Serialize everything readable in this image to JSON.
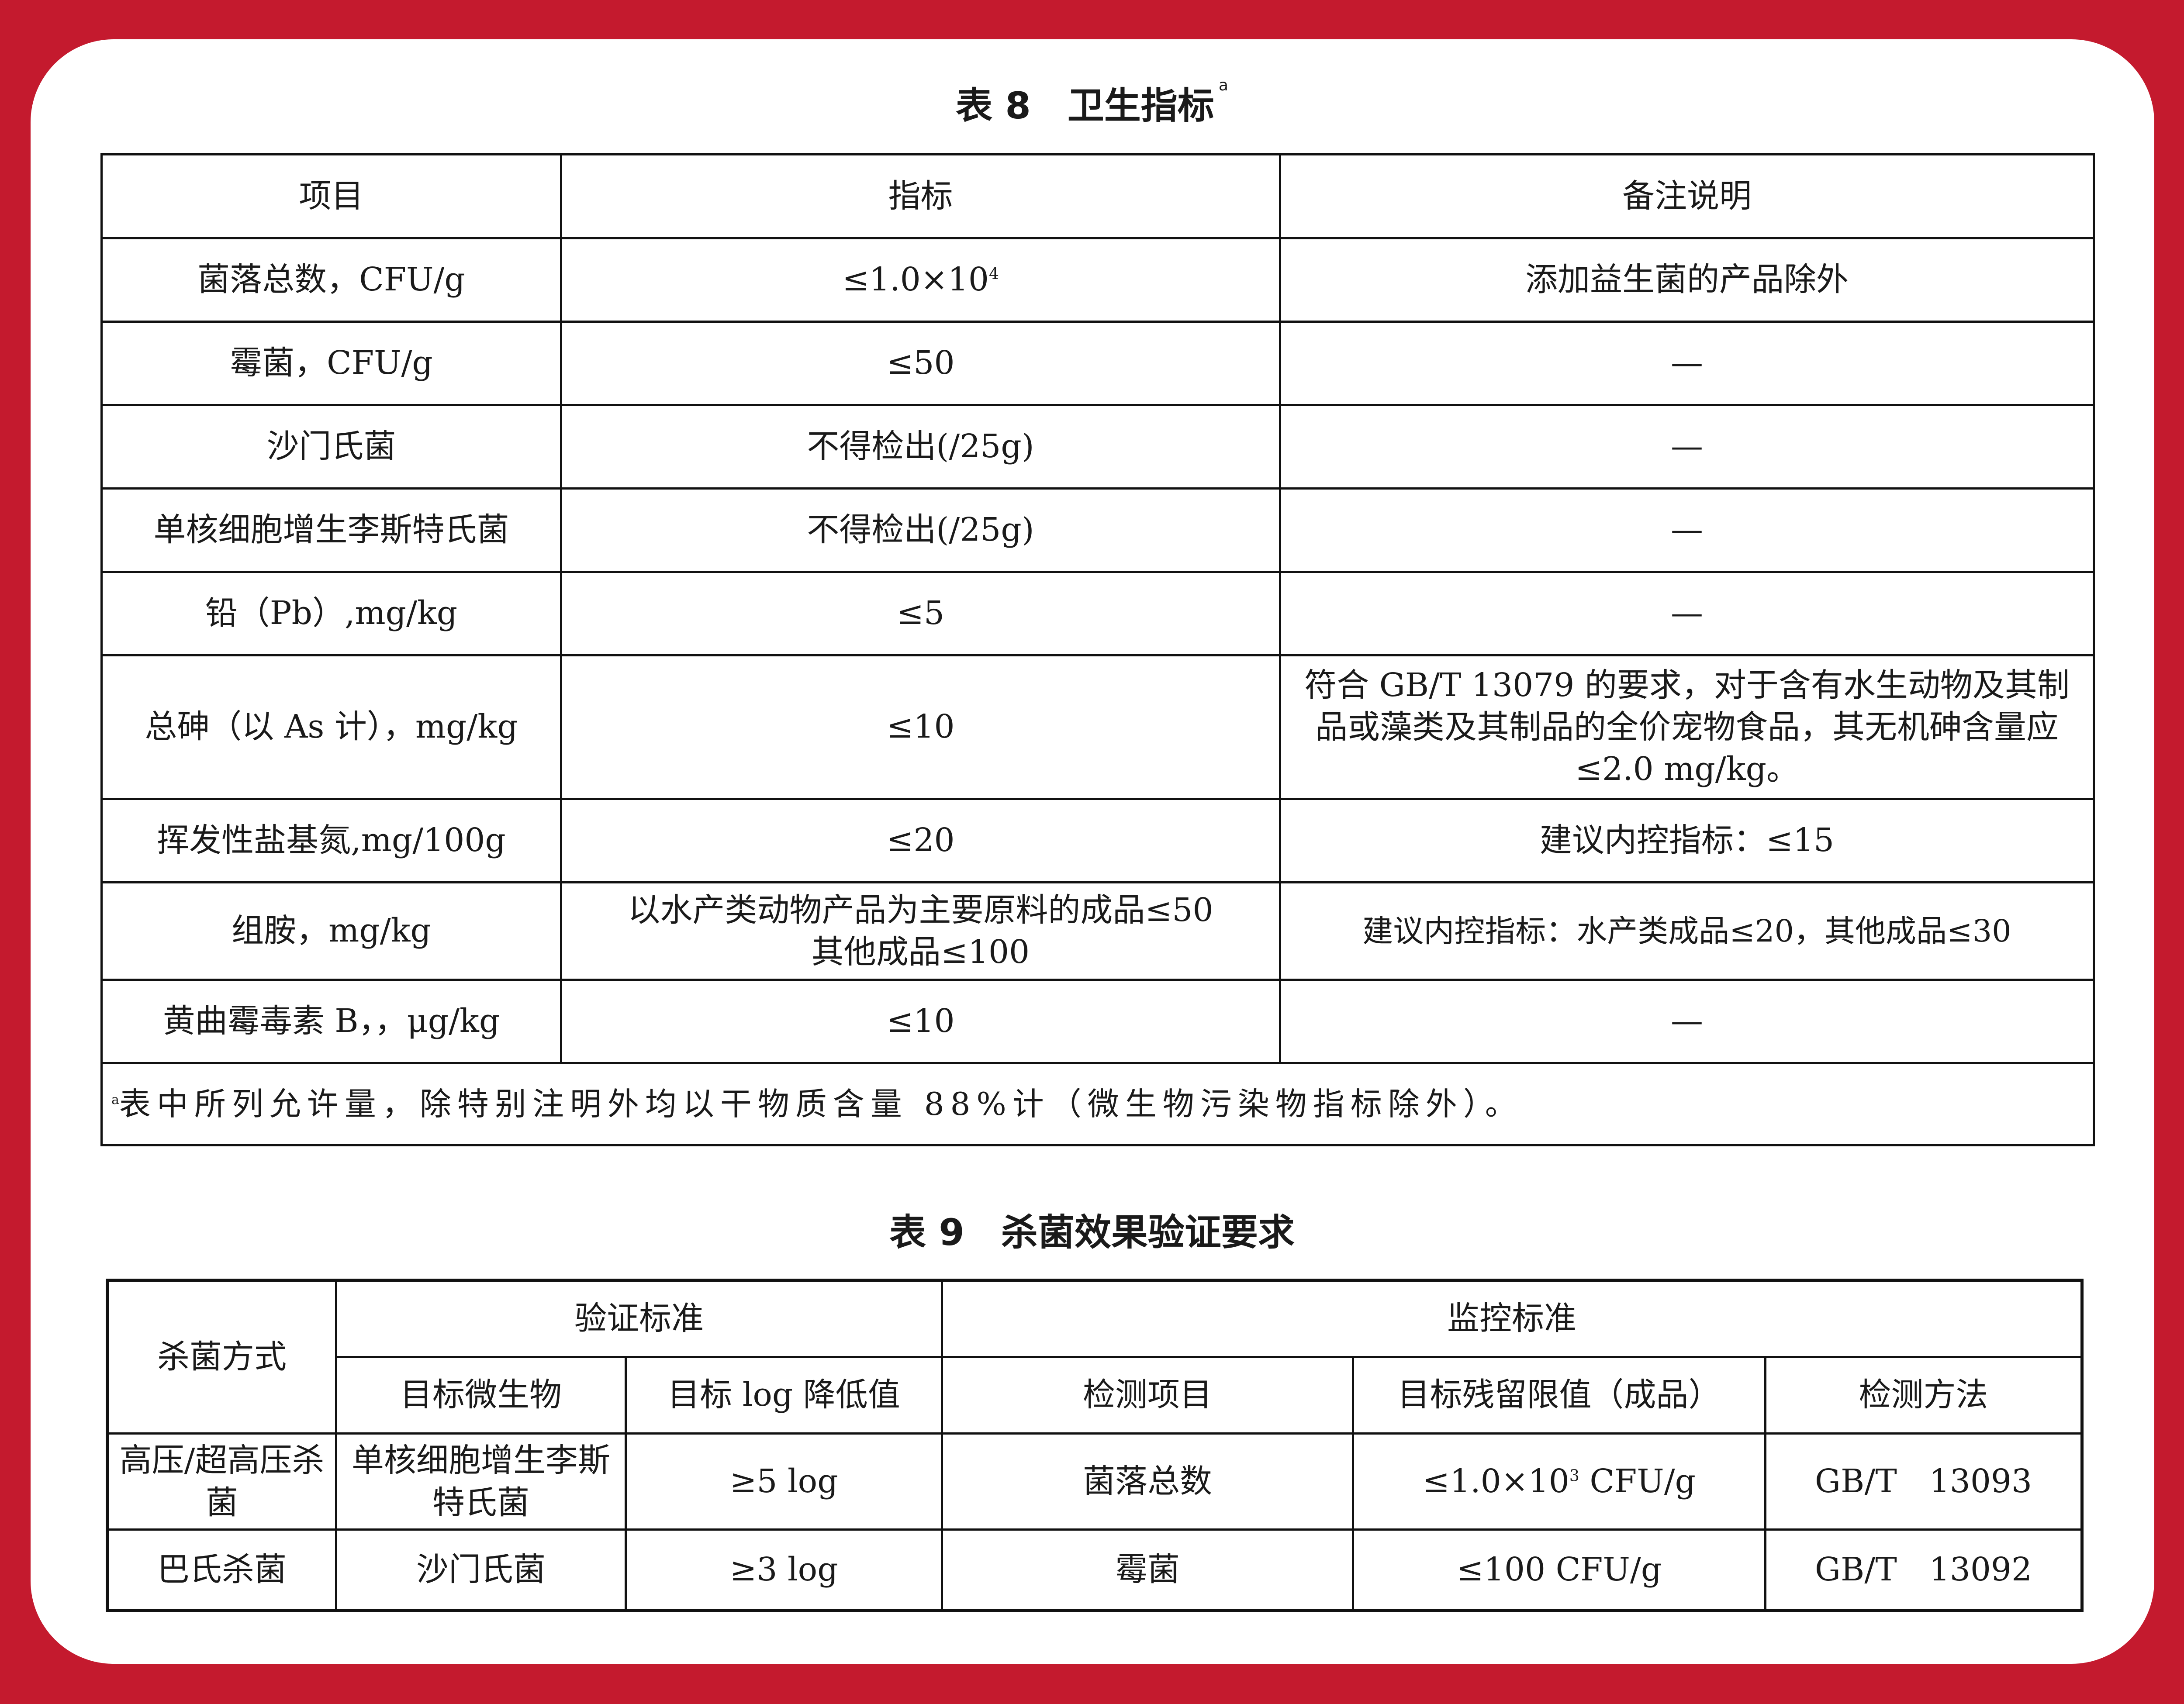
{
  "table8": {
    "title": "表 8　卫生指标",
    "title_note": "a",
    "headers": [
      "项目",
      "指标",
      "备注说明"
    ],
    "rows": [
      {
        "item": "菌落总数，CFU/g",
        "limit": "≤1.0×10",
        "limit_exp": "4",
        "note": "添加益生菌的产品除外"
      },
      {
        "item": "霉菌，CFU/g",
        "limit": "≤50",
        "note": "—"
      },
      {
        "item": "沙门氏菌",
        "limit": "不得检出(/25g)",
        "note": "—"
      },
      {
        "item": "单核细胞增生李斯特氏菌",
        "limit": "不得检出(/25g)",
        "note": "—"
      },
      {
        "item": "铅（Pb）,mg/kg",
        "limit": "≤5",
        "note": "—"
      },
      {
        "item": "总砷（以 As 计），mg/kg",
        "limit": "≤10",
        "note": "符合 GB/T 13079 的要求，对于含有水生动物及其制品或藻类及其制品的全价宠物食品，其无机砷含量应≤2.0 mg/kg。"
      },
      {
        "item": "挥发性盐基氮,mg/100g",
        "limit": "≤20",
        "note": "建议内控指标：≤15"
      },
      {
        "item": "组胺，mg/kg",
        "limit": "以水产类动物产品为主要原料的成品≤50",
        "limit2": "其他成品≤100",
        "note": "建议内控指标：水产类成品≤20，其他成品≤30"
      },
      {
        "item": "黄曲霉毒素 B，，μg/kg",
        "limit": "≤10",
        "note": "—"
      }
    ],
    "footnote_mark": "a",
    "footnote": "表中所列允许量，除特别注明外均以干物质含量 88%计（微生物污染物指标除外）。"
  },
  "table9": {
    "title": "表 9　杀菌效果验证要求",
    "headers": {
      "method": "杀菌方式",
      "verify": "验证标准",
      "monitor": "监控标准",
      "target": "目标微生物",
      "log": "目标 log 降低值",
      "item": "检测项目",
      "residual": "目标残留限值（成品）",
      "test": "检测方法"
    },
    "rows": [
      {
        "method": "高压/超高压杀菌",
        "target": "单核细胞增生李斯特氏菌",
        "log": "≥5 log",
        "item": "菌落总数",
        "residual": "≤1.0×10",
        "residual_exp": "3",
        "residual_unit": " CFU/g",
        "test": "GB/T　13093"
      },
      {
        "method": "巴氏杀菌",
        "target": "沙门氏菌",
        "log": "≥3 log",
        "item": "霉菌",
        "residual": "≤100 CFU/g",
        "test": "GB/T　13092"
      }
    ]
  },
  "colors": {
    "frame": "#c41a2e",
    "panel": "#ffffff"
  }
}
